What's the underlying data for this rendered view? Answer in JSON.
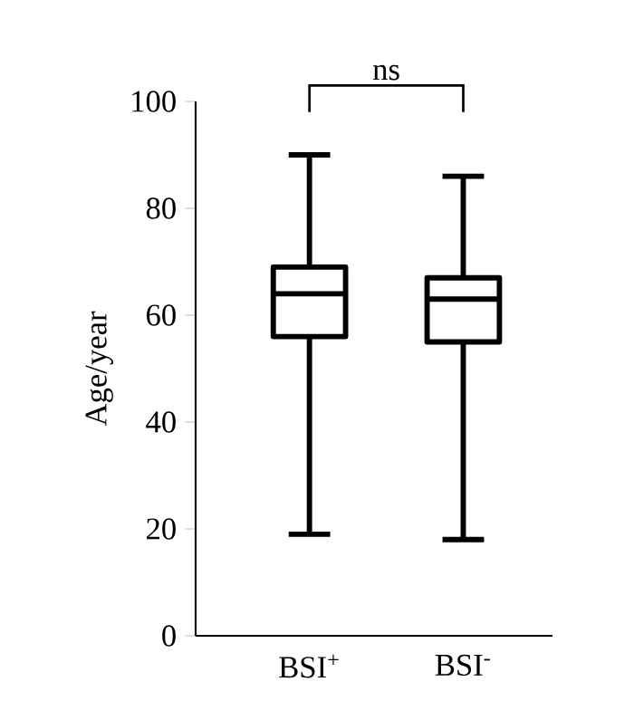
{
  "chart_data": {
    "type": "box",
    "categories": [
      "BSI$^{+}$",
      "BSI$^{-}$"
    ],
    "boxes": [
      {
        "low": 19,
        "q1": 56,
        "median": 64,
        "q3": 69,
        "high": 90
      },
      {
        "low": 18,
        "q1": 55,
        "median": 63,
        "q3": 67,
        "high": 86
      }
    ],
    "ylabel": "Age/year",
    "ylim": [
      0,
      100
    ],
    "yticks": [
      0,
      20,
      40,
      60,
      80,
      100
    ],
    "annotations": [
      "ns"
    ]
  }
}
